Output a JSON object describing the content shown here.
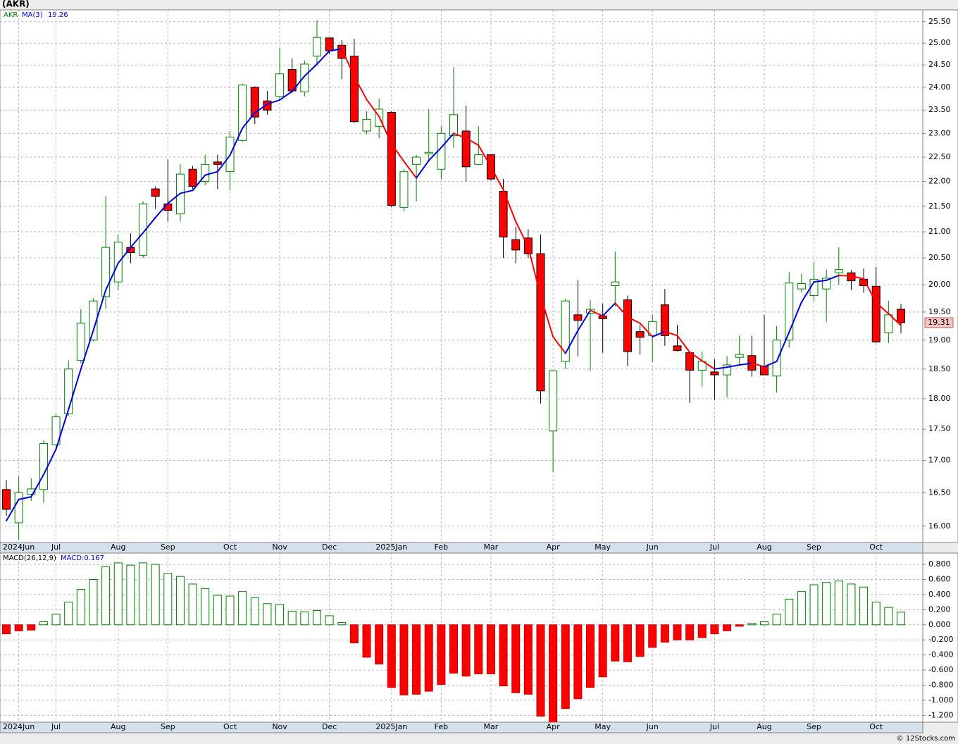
{
  "chart_data": [
    {
      "type": "candlestick",
      "title": "(AKR)",
      "symbol": "AKR",
      "yscale": "log",
      "grid": true,
      "up_color": "#008000",
      "down_color": "#ff0000",
      "categories": [
        null,
        "2024Jun",
        null,
        null,
        "Jul",
        null,
        null,
        null,
        null,
        "Aug",
        null,
        null,
        null,
        "Sep",
        null,
        null,
        null,
        null,
        "Oct",
        null,
        null,
        null,
        "Nov",
        null,
        null,
        null,
        "Dec",
        null,
        null,
        null,
        null,
        "2025Jan",
        null,
        null,
        null,
        "Feb",
        null,
        null,
        null,
        "Mar",
        null,
        null,
        null,
        null,
        "Apr",
        null,
        null,
        null,
        "May",
        null,
        null,
        null,
        "Jun",
        null,
        null,
        null,
        null,
        "Jul",
        null,
        null,
        null,
        "Aug",
        null,
        null,
        null,
        "Sep",
        null,
        null,
        null,
        null,
        "Oct",
        null,
        null
      ],
      "open": [
        16.55,
        16.05,
        16.48,
        16.55,
        17.25,
        17.75,
        18.65,
        19.0,
        19.78,
        20.05,
        20.7,
        20.55,
        21.85,
        21.55,
        21.35,
        22.25,
        22.0,
        22.4,
        22.2,
        22.85,
        24.0,
        23.7,
        23.8,
        24.4,
        23.9,
        24.7,
        25.12,
        24.95,
        24.7,
        23.05,
        23.15,
        23.45,
        21.48,
        22.35,
        22.57,
        22.25,
        22.95,
        23.05,
        22.35,
        22.55,
        21.8,
        20.85,
        20.88,
        20.58,
        17.47,
        18.63,
        19.45,
        19.48,
        19.43,
        19.98,
        19.72,
        19.15,
        19.08,
        19.63,
        18.9,
        18.78,
        18.48,
        18.45,
        18.4,
        18.7,
        18.73,
        18.55,
        18.38,
        19.0,
        19.92,
        19.8,
        19.92,
        20.22,
        20.22,
        20.1,
        19.97,
        19.13,
        19.55
      ],
      "high": [
        16.7,
        16.75,
        16.72,
        17.32,
        17.75,
        18.65,
        19.55,
        19.75,
        21.7,
        20.95,
        20.97,
        21.6,
        21.9,
        22.45,
        22.35,
        22.32,
        22.55,
        22.55,
        23.05,
        24.08,
        24.02,
        23.92,
        24.9,
        24.65,
        24.6,
        25.53,
        25.12,
        25.07,
        25.1,
        23.48,
        23.75,
        23.48,
        22.25,
        22.55,
        23.52,
        23.15,
        24.45,
        23.6,
        23.15,
        22.55,
        22.05,
        21.1,
        21.05,
        20.95,
        18.47,
        19.74,
        20.08,
        19.72,
        19.65,
        20.62,
        19.8,
        19.27,
        19.45,
        19.92,
        19.27,
        18.78,
        18.8,
        18.67,
        18.72,
        19.08,
        19.08,
        19.45,
        19.25,
        20.23,
        20.2,
        20.42,
        20.28,
        20.7,
        20.27,
        20.3,
        20.33,
        19.7,
        19.65
      ],
      "low": [
        16.15,
        15.8,
        16.38,
        16.35,
        17.17,
        17.72,
        18.6,
        18.98,
        19.56,
        19.9,
        20.4,
        20.5,
        21.45,
        21.2,
        21.2,
        21.85,
        21.92,
        21.85,
        21.82,
        22.82,
        23.2,
        23.4,
        23.72,
        23.87,
        23.8,
        24.5,
        24.75,
        24.18,
        23.22,
        22.98,
        22.9,
        21.48,
        21.4,
        21.6,
        22.4,
        22.05,
        22.7,
        22.0,
        22.35,
        22.02,
        20.5,
        20.4,
        20.5,
        17.92,
        16.82,
        18.5,
        18.72,
        18.47,
        18.78,
        19.6,
        18.55,
        18.75,
        18.62,
        18.9,
        18.8,
        17.93,
        18.2,
        17.98,
        18.02,
        18.57,
        18.37,
        18.4,
        18.1,
        18.87,
        19.85,
        19.7,
        19.32,
        20.0,
        19.9,
        19.85,
        18.95,
        18.95,
        19.12
      ],
      "close": [
        16.25,
        16.5,
        16.56,
        17.27,
        17.7,
        18.5,
        19.3,
        19.7,
        20.7,
        20.8,
        20.6,
        21.55,
        21.7,
        21.42,
        22.15,
        21.9,
        22.35,
        22.35,
        22.92,
        24.05,
        23.35,
        23.5,
        24.3,
        23.92,
        24.52,
        25.13,
        24.82,
        24.65,
        23.25,
        23.3,
        23.52,
        21.52,
        22.2,
        22.5,
        22.6,
        23.0,
        23.4,
        22.3,
        22.55,
        22.05,
        20.9,
        20.65,
        20.58,
        18.13,
        18.47,
        19.7,
        19.35,
        19.55,
        19.38,
        20.05,
        18.8,
        19.05,
        19.33,
        19.08,
        18.82,
        18.48,
        18.63,
        18.4,
        18.57,
        18.75,
        18.48,
        18.4,
        19.0,
        20.03,
        20.02,
        20.1,
        20.12,
        20.28,
        20.07,
        19.98,
        18.97,
        19.45,
        19.31
      ],
      "series": [
        {
          "name": "MA(3)",
          "color": "#0000dd",
          "down_color": "#ff0000",
          "values": [
            16.08,
            16.4,
            16.44,
            16.78,
            17.18,
            17.82,
            18.5,
            19.17,
            19.9,
            20.4,
            20.7,
            20.98,
            21.28,
            21.56,
            21.76,
            21.82,
            22.13,
            22.2,
            22.54,
            23.11,
            23.44,
            23.63,
            23.72,
            23.91,
            24.25,
            24.52,
            24.82,
            24.87,
            24.24,
            23.73,
            23.36,
            22.78,
            22.41,
            22.07,
            22.43,
            22.7,
            23.0,
            22.9,
            22.75,
            22.3,
            21.83,
            21.2,
            20.71,
            19.79,
            19.06,
            18.77,
            19.17,
            19.53,
            19.43,
            19.66,
            19.41,
            19.3,
            19.06,
            19.15,
            19.08,
            18.79,
            18.64,
            18.5,
            18.53,
            18.57,
            18.6,
            18.54,
            18.63,
            19.14,
            19.68,
            20.05,
            20.08,
            20.17,
            20.16,
            20.11,
            19.67,
            19.47,
            19.26
          ]
        }
      ],
      "ylim": [
        15.76,
        25.78
      ],
      "yticks": [
        {
          "value": 16,
          "label": "16.00"
        },
        {
          "value": 16.5,
          "label": "16.50"
        },
        {
          "value": 17,
          "label": "17.00"
        },
        {
          "value": 17.5,
          "label": "17.50"
        },
        {
          "value": 18,
          "label": "18.00"
        },
        {
          "value": 18.5,
          "label": "18.50"
        },
        {
          "value": 19,
          "label": "19.00"
        },
        {
          "value": 19.5,
          "label": "19.50"
        },
        {
          "value": 20,
          "label": "20.00"
        },
        {
          "value": 20.5,
          "label": "20.50"
        },
        {
          "value": 21,
          "label": "21.00"
        },
        {
          "value": 21.5,
          "label": "21.50"
        },
        {
          "value": 22,
          "label": "22.00"
        },
        {
          "value": 22.5,
          "label": "22.50"
        },
        {
          "value": 23,
          "label": "23.00"
        },
        {
          "value": 23.5,
          "label": "23.50"
        },
        {
          "value": 24,
          "label": "24.00"
        },
        {
          "value": 24.5,
          "label": "24.50"
        },
        {
          "value": 25,
          "label": "25.00"
        },
        {
          "value": 25.5,
          "label": "25.50"
        }
      ]
    },
    {
      "type": "bar",
      "title": "MACD(26,12,9)",
      "series_label": "MACD:0.167",
      "grid": true,
      "up_color": "#008000",
      "down_color": "#ff0000",
      "categories": [
        null,
        "2024Jun",
        null,
        null,
        "Jul",
        null,
        null,
        null,
        null,
        "Aug",
        null,
        null,
        null,
        "Sep",
        null,
        null,
        null,
        null,
        "Oct",
        null,
        null,
        null,
        "Nov",
        null,
        null,
        null,
        "Dec",
        null,
        null,
        null,
        null,
        "2025Jan",
        null,
        null,
        null,
        "Feb",
        null,
        null,
        null,
        "Mar",
        null,
        null,
        null,
        null,
        "Apr",
        null,
        null,
        null,
        "May",
        null,
        null,
        null,
        "Jun",
        null,
        null,
        null,
        null,
        "Jul",
        null,
        null,
        null,
        "Aug",
        null,
        null,
        null,
        "Sep",
        null,
        null,
        null,
        null,
        "Oct",
        null,
        null
      ],
      "values": [
        -0.12,
        -0.08,
        -0.07,
        0.04,
        0.14,
        0.3,
        0.47,
        0.6,
        0.77,
        0.82,
        0.79,
        0.82,
        0.8,
        0.68,
        0.64,
        0.54,
        0.48,
        0.39,
        0.38,
        0.44,
        0.36,
        0.28,
        0.27,
        0.18,
        0.17,
        0.19,
        0.12,
        0.03,
        -0.24,
        -0.43,
        -0.52,
        -0.83,
        -0.93,
        -0.92,
        -0.88,
        -0.79,
        -0.64,
        -0.68,
        -0.65,
        -0.65,
        -0.81,
        -0.9,
        -0.92,
        -1.21,
        -1.3,
        -1.11,
        -0.98,
        -0.83,
        -0.69,
        -0.48,
        -0.49,
        -0.42,
        -0.3,
        -0.23,
        -0.2,
        -0.2,
        -0.17,
        -0.12,
        -0.08,
        -0.02,
        0.02,
        0.04,
        0.14,
        0.34,
        0.44,
        0.53,
        0.56,
        0.58,
        0.54,
        0.5,
        0.3,
        0.23,
        0.167
      ],
      "ylim": [
        -1.29,
        0.95
      ],
      "yticks": [
        {
          "value": -1.2,
          "label": "-1.200"
        },
        {
          "value": -1,
          "label": "-1.000"
        },
        {
          "value": -0.8,
          "label": "-0.800"
        },
        {
          "value": -0.6,
          "label": "-0.600"
        },
        {
          "value": -0.4,
          "label": "-0.400"
        },
        {
          "value": -0.2,
          "label": "-0.200"
        },
        {
          "value": 0,
          "label": "0.000"
        },
        {
          "value": 0.2,
          "label": "0.200"
        },
        {
          "value": 0.4,
          "label": "0.400"
        },
        {
          "value": 0.6,
          "label": "0.600"
        },
        {
          "value": 0.8,
          "label": "0.800"
        }
      ]
    }
  ],
  "footer": "© 12Stocks.com"
}
